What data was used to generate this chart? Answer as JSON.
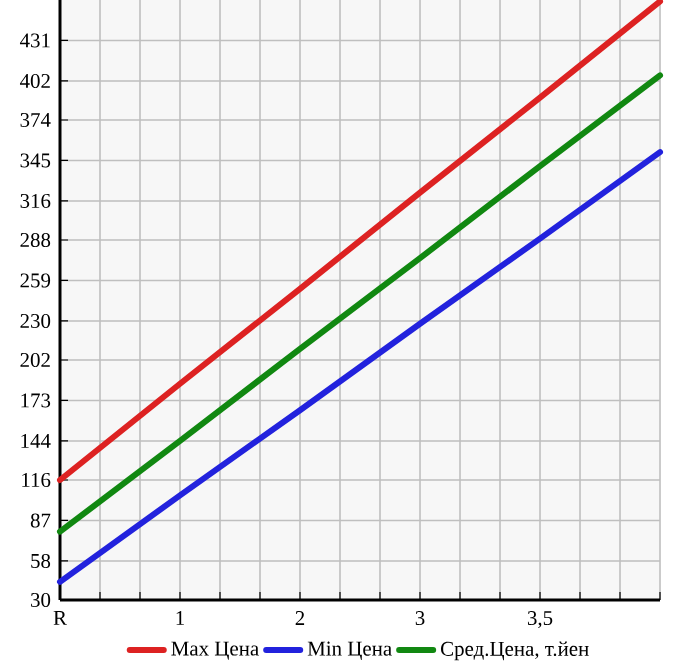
{
  "chart_data": {
    "type": "line",
    "categories": [
      "R",
      "1",
      "2",
      "3",
      "3,5",
      null
    ],
    "ylim": [
      30,
      460
    ],
    "yticks": [
      30,
      58,
      87,
      116,
      144,
      173,
      202,
      230,
      259,
      288,
      316,
      345,
      374,
      402,
      431
    ],
    "grid": true,
    "legend": "bottom",
    "marker": "none",
    "line_style": "solid",
    "series": [
      {
        "name": "Max Цена",
        "color": "#dd2222",
        "values": [
          116,
          185,
          253,
          322,
          390,
          459
        ]
      },
      {
        "name": "Min Цена",
        "color": "#2222dd",
        "values": [
          43,
          105,
          166,
          228,
          289,
          351
        ]
      },
      {
        "name": "Сред.Цена, т.йен",
        "color": "#118811",
        "values": [
          79,
          144,
          210,
          275,
          341,
          406
        ]
      }
    ]
  }
}
